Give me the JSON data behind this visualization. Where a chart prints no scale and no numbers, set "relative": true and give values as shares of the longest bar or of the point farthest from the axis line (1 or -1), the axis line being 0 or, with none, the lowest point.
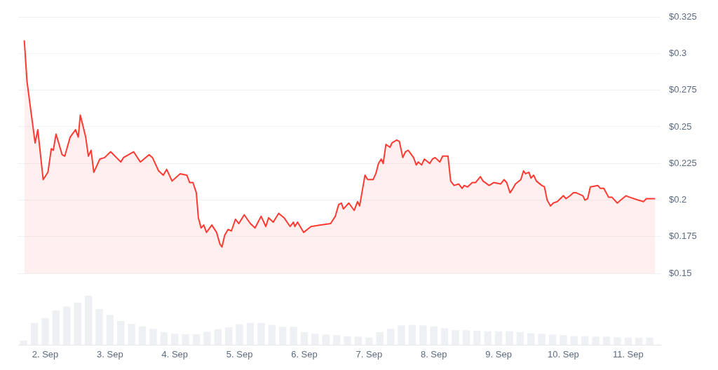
{
  "chart_data": [
    {
      "type": "area",
      "color": "#ff3a33",
      "grid": "y",
      "tick_labels": "y",
      "xlim": [
        "--09-01T14:00",
        "--09-11T12:00"
      ],
      "ylim": [
        0.15,
        0.325
      ],
      "yticks": [
        {
          "value": 0.15,
          "label": "$0.15"
        },
        {
          "value": 0.175,
          "label": "$0.175"
        },
        {
          "value": 0.2,
          "label": "$0.2"
        },
        {
          "value": 0.225,
          "label": "$0.225"
        },
        {
          "value": 0.25,
          "label": "$0.25"
        },
        {
          "value": 0.275,
          "label": "$0.275"
        },
        {
          "value": 0.3,
          "label": "$0.3"
        },
        {
          "value": 0.325,
          "label": "$0.325"
        }
      ],
      "x": [
        "--09-01T16:15",
        "--09-01T17:15",
        "--09-01T19:15",
        "--09-01T20:15",
        "--09-01T21:15",
        "--09-01T23:15",
        "--09-02T01:00",
        "--09-02T02:15",
        "--09-02T03:00",
        "--09-02T04:00",
        "--09-02T05:00",
        "--09-02T06:15",
        "--09-02T07:15",
        "--09-02T09:15",
        "--09-02T11:15",
        "--09-02T12:15",
        "--09-02T13:00",
        "--09-02T15:00",
        "--09-02T16:00",
        "--09-02T17:00",
        "--09-02T18:00",
        "--09-02T20:15",
        "--09-02T22:00",
        "--09-03T00:15",
        "--09-03T04:00",
        "--09-03T05:00",
        "--09-03T08:45",
        "--09-03T11:15",
        "--09-03T14:30",
        "--09-03T15:45",
        "--09-03T18:00",
        "--09-03T19:45",
        "--09-03T21:00",
        "--09-03T23:00",
        "--09-04T02:00",
        "--09-04T04:30",
        "--09-04T05:30",
        "--09-04T06:45",
        "--09-04T08:00",
        "--09-04T08:45",
        "--09-04T09:45",
        "--09-04T10:45",
        "--09-04T11:45",
        "--09-04T13:45",
        "--09-04T15:30",
        "--09-04T16:45",
        "--09-04T17:30",
        "--09-04T18:30",
        "--09-04T19:45",
        "--09-04T21:00",
        "--09-04T22:30",
        "--09-04T23:45",
        "--09-05T01:45",
        "--09-05T04:00",
        "--09-05T05:45",
        "--09-05T08:00",
        "--09-05T09:45",
        "--09-05T10:45",
        "--09-05T12:30",
        "--09-05T14:30",
        "--09-05T16:30",
        "--09-05T18:45",
        "--09-05T20:00",
        "--09-05T20:30",
        "--09-05T21:30",
        "--09-05T23:45",
        "--09-06T02:30",
        "--09-06T05:45",
        "--09-06T09:45",
        "--09-06T11:30",
        "--09-06T12:45",
        "--09-06T13:45",
        "--09-06T14:30",
        "--09-06T16:30",
        "--09-06T18:30",
        "--09-06T19:45",
        "--09-06T20:30",
        "--09-06T22:30",
        "--09-06T23:30",
        "--09-07T01:30",
        "--09-07T02:30",
        "--09-07T03:30",
        "--09-07T04:30",
        "--09-07T05:15",
        "--09-07T06:15",
        "--09-07T07:45",
        "--09-07T08:30",
        "--09-07T10:15",
        "--09-07T11:15",
        "--09-07T12:30",
        "--09-07T13:30",
        "--09-07T14:30",
        "--09-07T16:30",
        "--09-07T17:30",
        "--09-07T18:15",
        "--09-07T19:30",
        "--09-07T20:30",
        "--09-07T22:30",
        "--09-07T23:30",
        "--09-08T00:30",
        "--09-08T02:15",
        "--09-08T03:15",
        "--09-08T05:15",
        "--09-08T06:15",
        "--09-08T07:30",
        "--09-08T09:15",
        "--09-08T10:30",
        "--09-08T11:15",
        "--09-08T12:30",
        "--09-08T14:15",
        "--09-08T15:30",
        "--09-08T17:15",
        "--09-08T18:15",
        "--09-08T20:30",
        "--09-08T22:15",
        "--09-09T00:45",
        "--09-09T02:00",
        "--09-09T03:00",
        "--09-09T04:15",
        "--09-09T05:00",
        "--09-09T06:15",
        "--09-09T08:15",
        "--09-09T09:15",
        "--09-09T10:00",
        "--09-09T11:15",
        "--09-09T12:00",
        "--09-09T13:00",
        "--09-09T14:00",
        "--09-09T16:00",
        "--09-09T17:00",
        "--09-09T18:00",
        "--09-09T19:15",
        "--09-09T20:15",
        "--09-09T21:45",
        "--09-10T00:00",
        "--09-10T01:00",
        "--09-10T02:30",
        "--09-10T03:45",
        "--09-10T04:45",
        "--09-10T07:15",
        "--09-10T08:00",
        "--09-10T09:00",
        "--09-10T10:00",
        "--09-10T12:45",
        "--09-10T13:45",
        "--09-10T15:00",
        "--09-10T16:45",
        "--09-10T18:00",
        "--09-10T20:00",
        "--09-10T21:15",
        "--09-10T23:15",
        "--09-11T00:30",
        "--09-11T03:45",
        "--09-11T05:45",
        "--09-11T06:45",
        "--09-11T10:00"
      ],
      "values": [
        0.309,
        0.281,
        0.253,
        0.239,
        0.248,
        0.214,
        0.219,
        0.235,
        0.234,
        0.245,
        0.239,
        0.231,
        0.23,
        0.243,
        0.248,
        0.243,
        0.258,
        0.243,
        0.23,
        0.234,
        0.219,
        0.228,
        0.229,
        0.233,
        0.226,
        0.229,
        0.233,
        0.226,
        0.231,
        0.229,
        0.22,
        0.217,
        0.221,
        0.213,
        0.218,
        0.217,
        0.212,
        0.212,
        0.205,
        0.188,
        0.181,
        0.183,
        0.178,
        0.183,
        0.178,
        0.17,
        0.168,
        0.176,
        0.18,
        0.179,
        0.187,
        0.184,
        0.19,
        0.184,
        0.181,
        0.189,
        0.182,
        0.188,
        0.185,
        0.191,
        0.188,
        0.182,
        0.185,
        0.182,
        0.185,
        0.178,
        0.182,
        0.183,
        0.184,
        0.189,
        0.197,
        0.198,
        0.194,
        0.198,
        0.193,
        0.199,
        0.196,
        0.217,
        0.214,
        0.214,
        0.218,
        0.225,
        0.228,
        0.225,
        0.238,
        0.236,
        0.239,
        0.241,
        0.24,
        0.229,
        0.233,
        0.234,
        0.229,
        0.224,
        0.226,
        0.224,
        0.228,
        0.225,
        0.228,
        0.229,
        0.226,
        0.23,
        0.23,
        0.213,
        0.21,
        0.211,
        0.208,
        0.21,
        0.209,
        0.212,
        0.212,
        0.216,
        0.213,
        0.21,
        0.212,
        0.211,
        0.214,
        0.212,
        0.205,
        0.207,
        0.211,
        0.214,
        0.22,
        0.218,
        0.219,
        0.215,
        0.217,
        0.213,
        0.21,
        0.209,
        0.2,
        0.196,
        0.198,
        0.199,
        0.203,
        0.201,
        0.203,
        0.205,
        0.205,
        0.203,
        0.2,
        0.201,
        0.209,
        0.21,
        0.208,
        0.208,
        0.202,
        0.202,
        0.198,
        0.2,
        0.203,
        0.202,
        0.2,
        0.199,
        0.201,
        0.201
      ]
    },
    {
      "type": "bar",
      "color": "#eef0f3",
      "relative": true,
      "grid": false,
      "tick_labels": "x",
      "xlim": [
        "--09-01T14:00",
        "--09-11T12:00"
      ],
      "xticks": [
        {
          "value": "--09-02",
          "label": "2. Sep"
        },
        {
          "value": "--09-03",
          "label": "3. Sep"
        },
        {
          "value": "--09-04",
          "label": "4. Sep"
        },
        {
          "value": "--09-05",
          "label": "5. Sep"
        },
        {
          "value": "--09-06",
          "label": "6. Sep"
        },
        {
          "value": "--09-07",
          "label": "7. Sep"
        },
        {
          "value": "--09-08",
          "label": "8. Sep"
        },
        {
          "value": "--09-09",
          "label": "9. Sep"
        },
        {
          "value": "--09-10",
          "label": "10. Sep"
        },
        {
          "value": "--09-11",
          "label": "11. Sep"
        }
      ],
      "x": [
        "--09-01T16:00",
        "--09-01T20:00",
        "--09-02T00:00",
        "--09-02T04:00",
        "--09-02T08:00",
        "--09-02T12:00",
        "--09-02T16:00",
        "--09-02T20:00",
        "--09-03T00:00",
        "--09-03T04:00",
        "--09-03T08:00",
        "--09-03T12:00",
        "--09-03T16:00",
        "--09-03T20:00",
        "--09-04T00:00",
        "--09-04T04:00",
        "--09-04T08:00",
        "--09-04T12:00",
        "--09-04T16:00",
        "--09-04T20:00",
        "--09-05T00:00",
        "--09-05T04:00",
        "--09-05T08:00",
        "--09-05T12:00",
        "--09-05T16:00",
        "--09-05T20:00",
        "--09-06T00:00",
        "--09-06T04:00",
        "--09-06T08:00",
        "--09-06T12:00",
        "--09-06T16:00",
        "--09-06T20:00",
        "--09-07T00:00",
        "--09-07T04:00",
        "--09-07T08:00",
        "--09-07T12:00",
        "--09-07T16:00",
        "--09-07T20:00",
        "--09-08T00:00",
        "--09-08T04:00",
        "--09-08T08:00",
        "--09-08T12:00",
        "--09-08T16:00",
        "--09-08T20:00",
        "--09-09T00:00",
        "--09-09T04:00",
        "--09-09T08:00",
        "--09-09T12:00",
        "--09-09T16:00",
        "--09-09T20:00",
        "--09-10T00:00",
        "--09-10T04:00",
        "--09-10T08:00",
        "--09-10T12:00",
        "--09-10T16:00",
        "--09-10T20:00",
        "--09-11T00:00",
        "--09-11T04:00",
        "--09-11T08:00"
      ],
      "values": [
        0.09,
        0.45,
        0.55,
        0.7,
        0.78,
        0.86,
        1,
        0.73,
        0.61,
        0.49,
        0.43,
        0.38,
        0.33,
        0.26,
        0.23,
        0.22,
        0.22,
        0.27,
        0.32,
        0.36,
        0.42,
        0.45,
        0.45,
        0.41,
        0.37,
        0.37,
        0.26,
        0.23,
        0.21,
        0.2,
        0.18,
        0.17,
        0.15,
        0.26,
        0.33,
        0.4,
        0.41,
        0.4,
        0.38,
        0.34,
        0.3,
        0.3,
        0.29,
        0.28,
        0.28,
        0.28,
        0.26,
        0.24,
        0.23,
        0.21,
        0.2,
        0.18,
        0.18,
        0.17,
        0.17,
        0.16,
        0.15,
        0.15,
        0.15
      ]
    }
  ]
}
